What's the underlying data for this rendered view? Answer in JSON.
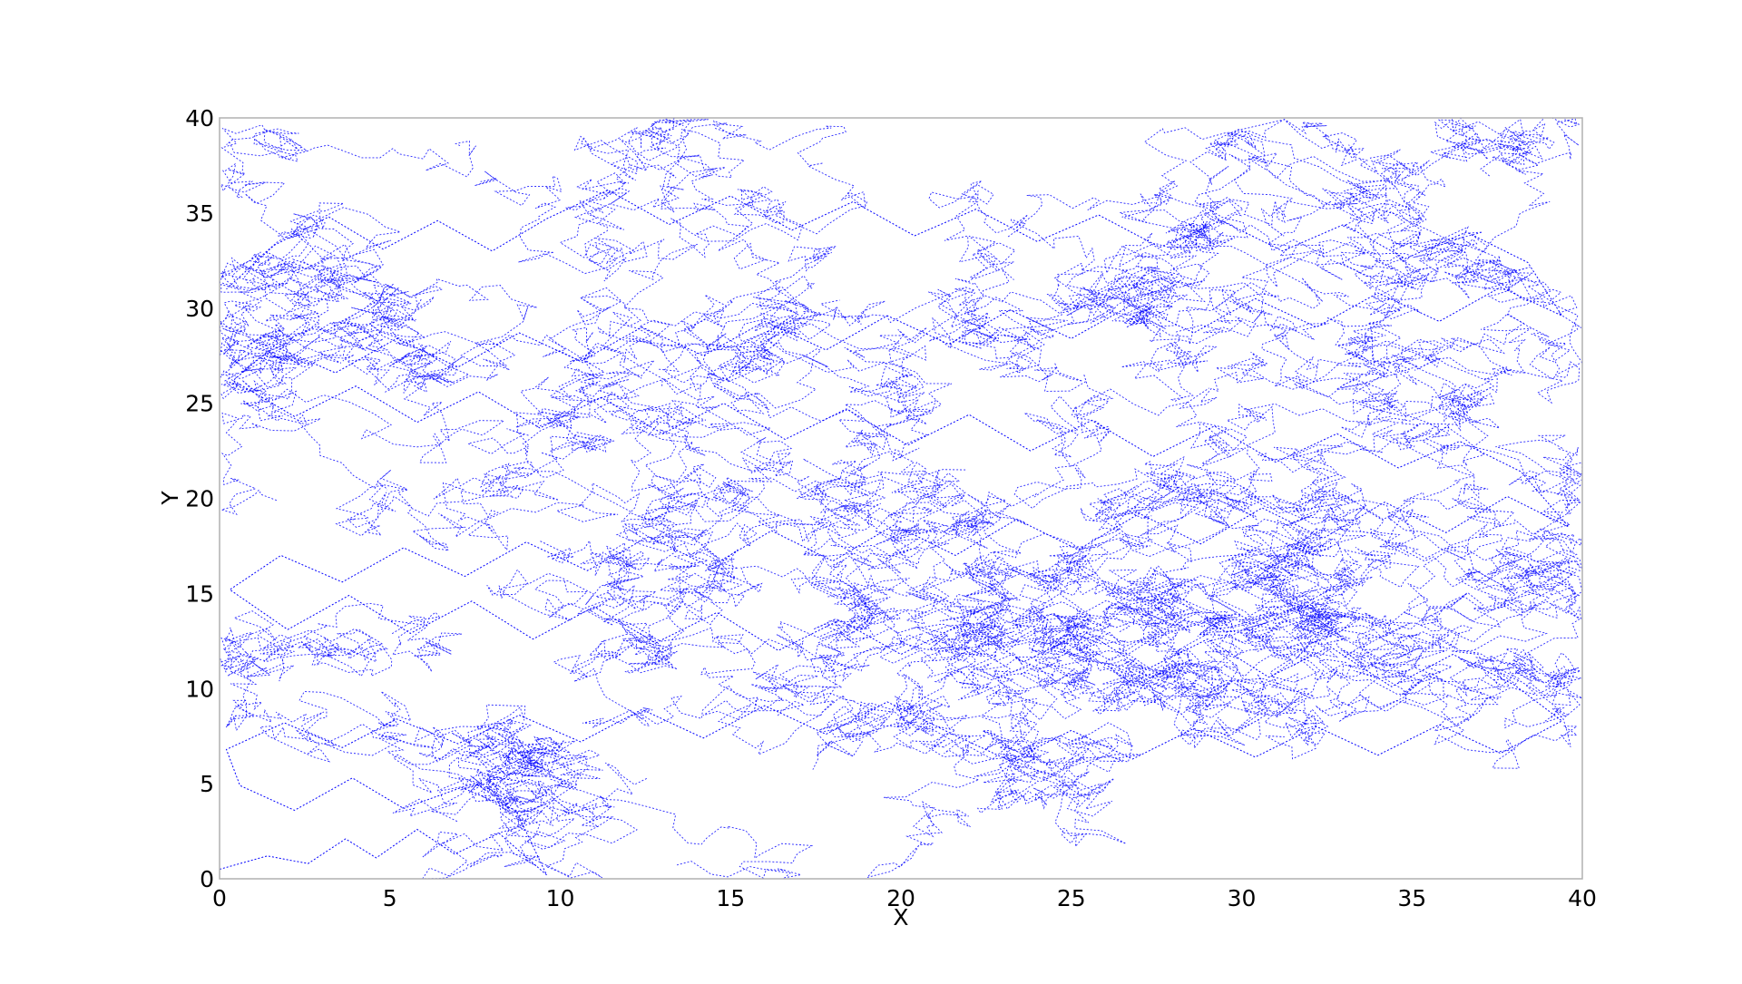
{
  "chart_data": {
    "type": "line",
    "title": "",
    "xlabel": "X",
    "ylabel": "Y",
    "xlim": [
      0,
      40
    ],
    "ylim": [
      0,
      40
    ],
    "xticks": [
      0,
      5,
      10,
      15,
      20,
      25,
      30,
      35,
      40
    ],
    "yticks": [
      0,
      5,
      10,
      15,
      20,
      25,
      30,
      35,
      40
    ],
    "grid": false,
    "legend": "none",
    "line_style": "dashed",
    "series": [
      {
        "color": "#0000ff",
        "values": [
          [
            0.0,
            0.5
          ],
          [
            1.4,
            1.2
          ],
          [
            2.6,
            0.8
          ],
          [
            3.7,
            2.1
          ],
          [
            4.6,
            1.1
          ],
          [
            5.8,
            2.6
          ],
          [
            6.9,
            1.3
          ],
          [
            8.2,
            2.4
          ],
          [
            9.6,
            0.2
          ],
          [
            8.7,
            3.6
          ],
          [
            7.1,
            4.8
          ],
          [
            5.4,
            3.7
          ],
          [
            3.9,
            5.3
          ],
          [
            2.2,
            3.6
          ],
          [
            0.6,
            4.9
          ],
          [
            0.2,
            6.8
          ],
          [
            1.9,
            8.2
          ],
          [
            3.6,
            6.9
          ],
          [
            5.2,
            8.4
          ],
          [
            7.0,
            7.1
          ],
          [
            8.8,
            8.6
          ],
          [
            10.6,
            7.2
          ],
          [
            12.4,
            8.9
          ],
          [
            14.2,
            7.4
          ],
          [
            16.0,
            9.1
          ],
          [
            17.8,
            7.6
          ],
          [
            19.6,
            9.3
          ],
          [
            21.4,
            7.7
          ],
          [
            23.2,
            6.2
          ],
          [
            25.0,
            7.8
          ],
          [
            26.8,
            6.3
          ],
          [
            28.6,
            7.9
          ],
          [
            30.4,
            6.4
          ],
          [
            32.2,
            8.0
          ],
          [
            34.0,
            6.5
          ],
          [
            35.8,
            8.1
          ],
          [
            37.6,
            6.6
          ],
          [
            39.4,
            8.3
          ],
          [
            38.0,
            10.2
          ],
          [
            36.2,
            11.8
          ],
          [
            34.4,
            10.1
          ],
          [
            32.6,
            12.2
          ],
          [
            30.8,
            10.6
          ],
          [
            29.0,
            12.6
          ],
          [
            27.2,
            11.0
          ],
          [
            25.4,
            13.0
          ],
          [
            23.6,
            11.4
          ],
          [
            21.8,
            13.4
          ],
          [
            20.0,
            11.8
          ],
          [
            18.2,
            13.6
          ],
          [
            16.4,
            12.0
          ],
          [
            14.6,
            14.0
          ],
          [
            12.8,
            12.4
          ],
          [
            11.0,
            14.3
          ],
          [
            9.2,
            12.6
          ],
          [
            7.4,
            14.6
          ],
          [
            5.6,
            12.9
          ],
          [
            3.8,
            14.9
          ],
          [
            2.0,
            13.1
          ],
          [
            0.3,
            15.2
          ],
          [
            1.8,
            17.0
          ],
          [
            3.6,
            15.6
          ],
          [
            5.4,
            17.4
          ],
          [
            7.2,
            15.9
          ],
          [
            9.0,
            17.7
          ],
          [
            10.8,
            16.2
          ],
          [
            12.6,
            18.0
          ],
          [
            14.4,
            16.4
          ],
          [
            16.2,
            18.3
          ],
          [
            18.0,
            16.7
          ],
          [
            19.8,
            18.6
          ],
          [
            21.6,
            17.0
          ],
          [
            23.4,
            18.9
          ],
          [
            25.2,
            17.3
          ],
          [
            27.0,
            19.2
          ],
          [
            28.8,
            17.6
          ],
          [
            30.6,
            19.5
          ],
          [
            32.4,
            17.9
          ],
          [
            34.2,
            19.8
          ],
          [
            36.0,
            18.2
          ],
          [
            37.8,
            20.1
          ],
          [
            39.6,
            18.5
          ],
          [
            38.2,
            21.4
          ],
          [
            36.4,
            23.0
          ],
          [
            34.6,
            21.6
          ],
          [
            32.8,
            23.4
          ],
          [
            31.0,
            21.9
          ],
          [
            29.2,
            23.8
          ],
          [
            27.4,
            22.2
          ],
          [
            25.6,
            24.1
          ],
          [
            23.8,
            22.5
          ],
          [
            22.0,
            24.4
          ],
          [
            20.2,
            22.8
          ],
          [
            18.4,
            24.7
          ],
          [
            16.6,
            23.1
          ],
          [
            14.8,
            25.0
          ],
          [
            13.0,
            23.4
          ],
          [
            11.2,
            25.3
          ],
          [
            9.4,
            23.7
          ],
          [
            7.6,
            25.6
          ],
          [
            5.8,
            24.0
          ],
          [
            4.0,
            25.9
          ],
          [
            2.2,
            24.3
          ],
          [
            0.4,
            26.2
          ],
          [
            1.6,
            28.0
          ],
          [
            3.4,
            26.6
          ],
          [
            5.2,
            28.4
          ],
          [
            7.0,
            26.9
          ],
          [
            8.8,
            28.7
          ],
          [
            10.6,
            27.2
          ],
          [
            12.4,
            29.0
          ],
          [
            14.2,
            27.5
          ],
          [
            16.0,
            29.3
          ],
          [
            17.8,
            27.8
          ],
          [
            19.6,
            29.6
          ],
          [
            21.4,
            28.1
          ],
          [
            23.2,
            29.9
          ],
          [
            25.0,
            28.4
          ],
          [
            26.8,
            30.2
          ],
          [
            28.6,
            28.7
          ],
          [
            30.4,
            30.5
          ],
          [
            32.2,
            29.0
          ],
          [
            34.0,
            30.8
          ],
          [
            35.8,
            29.3
          ],
          [
            37.6,
            31.1
          ],
          [
            39.4,
            29.6
          ],
          [
            38.4,
            32.4
          ],
          [
            36.6,
            34.0
          ],
          [
            34.8,
            32.6
          ],
          [
            33.0,
            34.4
          ],
          [
            31.2,
            33.0
          ],
          [
            29.4,
            34.6
          ],
          [
            27.6,
            33.2
          ],
          [
            25.8,
            34.9
          ],
          [
            24.0,
            33.5
          ],
          [
            22.2,
            35.2
          ],
          [
            20.4,
            33.8
          ],
          [
            18.6,
            35.6
          ],
          [
            16.8,
            34.1
          ],
          [
            15.0,
            35.9
          ],
          [
            13.2,
            34.4
          ],
          [
            11.4,
            36.2
          ],
          [
            9.6,
            34.7
          ],
          [
            8.0,
            33.0
          ],
          [
            6.4,
            34.6
          ],
          [
            4.8,
            33.1
          ],
          [
            3.2,
            34.8
          ],
          [
            1.6,
            33.3
          ],
          [
            0.2,
            31.0
          ]
        ]
      }
    ]
  }
}
